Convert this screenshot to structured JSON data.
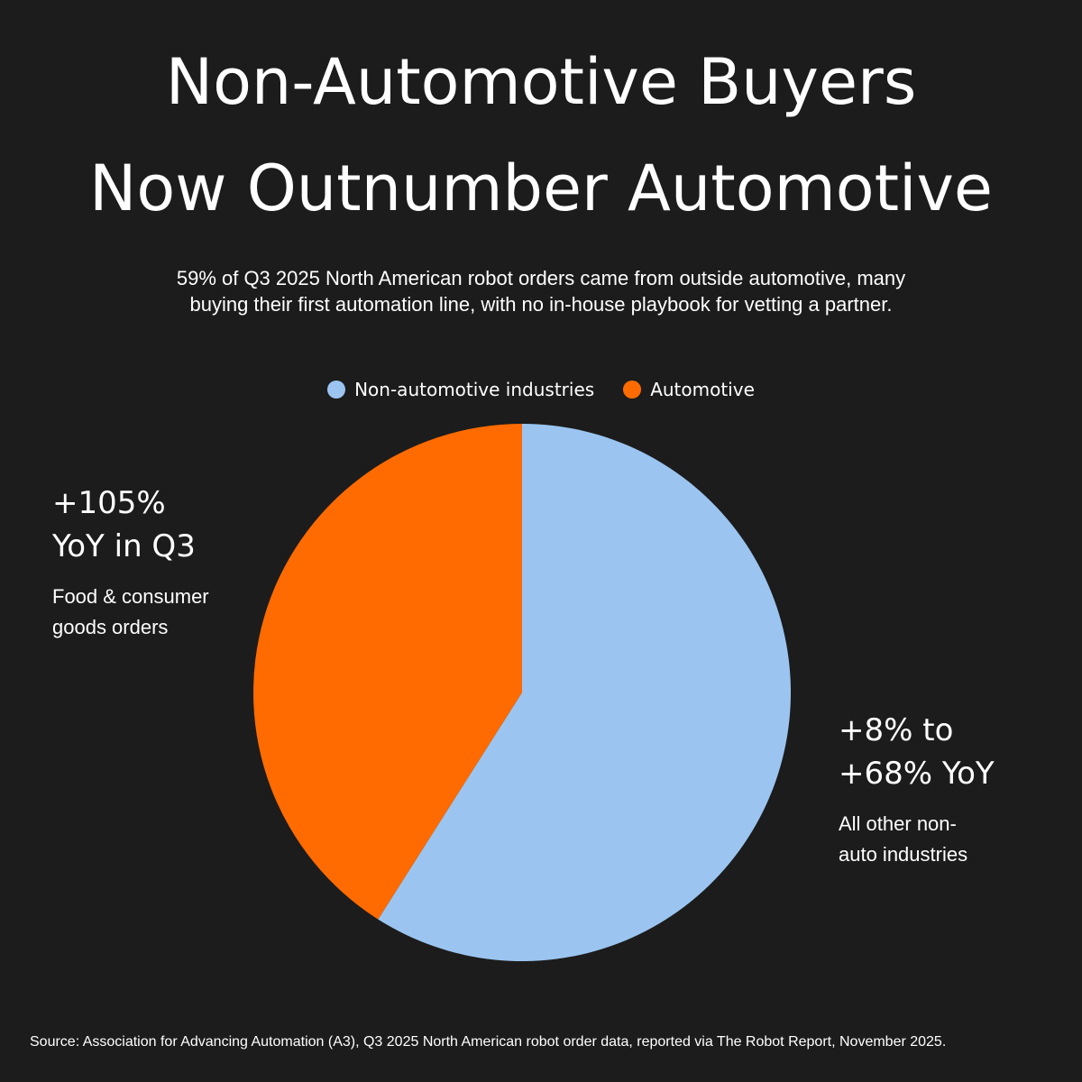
{
  "title": {
    "line1": "Non-Automotive Buyers",
    "line2": "Now Outnumber Automotive"
  },
  "subtitle": {
    "line1": "59% of Q3 2025 North American robot orders came from outside automotive, many",
    "line2": "buying their first automation line, with no in-house playbook for vetting a partner."
  },
  "legend": {
    "items": [
      {
        "label": "Non-automotive industries",
        "color": "#9bc5f0"
      },
      {
        "label": "Automotive",
        "color": "#ff6b00"
      }
    ],
    "placement": "top-center"
  },
  "callouts": {
    "left": {
      "big_line1": "+105%",
      "big_line2": "YoY in Q3",
      "small_line1": "Food & consumer",
      "small_line2": "goods orders"
    },
    "right": {
      "big_line1": "+8% to",
      "big_line2": "+68% YoY",
      "small_line1": "All other non-",
      "small_line2": "auto industries"
    }
  },
  "source": "Source: Association for Advancing Automation (A3), Q3 2025 North American robot order data, reported via The Robot Report, November 2025.",
  "colors": {
    "background": "#1c1c1c",
    "non_automotive": "#9bc5f0",
    "automotive": "#ff6b00"
  },
  "chart_data": {
    "type": "pie",
    "categories": [
      "Non-automotive industries",
      "Automotive"
    ],
    "values": [
      59,
      41
    ],
    "colors": [
      "#9bc5f0",
      "#ff6b00"
    ],
    "start": "12 o'clock",
    "direction": "clockwise"
  }
}
